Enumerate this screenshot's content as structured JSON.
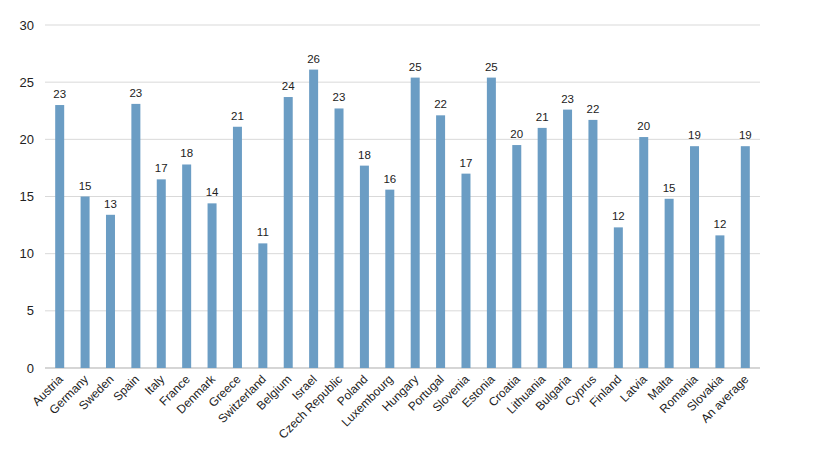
{
  "chart_data": {
    "type": "bar",
    "categories": [
      "Austria",
      "Germany",
      "Sweden",
      "Spain",
      "Italy",
      "France",
      "Denmark",
      "Greece",
      "Switzerland",
      "Belgium",
      "Israel",
      "Czech Republic",
      "Poland",
      "Luxembourg",
      "Hungary",
      "Portugal",
      "Slovenia",
      "Estonia",
      "Croatia",
      "Lithuania",
      "Bulgaria",
      "Cyprus",
      "Finland",
      "Latvia",
      "Malta",
      "Romania",
      "Slovakia",
      "An average"
    ],
    "values": [
      23.0,
      15.0,
      13.4,
      23.1,
      16.5,
      17.8,
      14.4,
      21.1,
      10.9,
      23.7,
      26.1,
      22.7,
      17.7,
      15.6,
      25.4,
      22.1,
      17.0,
      25.4,
      19.5,
      21.0,
      22.6,
      21.7,
      12.3,
      20.2,
      14.8,
      19.4,
      11.6,
      19.4
    ],
    "value_labels": [
      "23",
      "15",
      "13",
      "23",
      "17",
      "18",
      "14",
      "21",
      "11",
      "24",
      "26",
      "23",
      "18",
      "16",
      "25",
      "22",
      "17",
      "25",
      "20",
      "21",
      "23",
      "22",
      "12",
      "20",
      "15",
      "19",
      "12",
      "19"
    ],
    "color": "#6b9dc4",
    "ylim": [
      0,
      30
    ],
    "yticks": [
      0,
      5,
      10,
      15,
      20,
      25,
      30
    ],
    "grid": true,
    "data_labels": true
  }
}
